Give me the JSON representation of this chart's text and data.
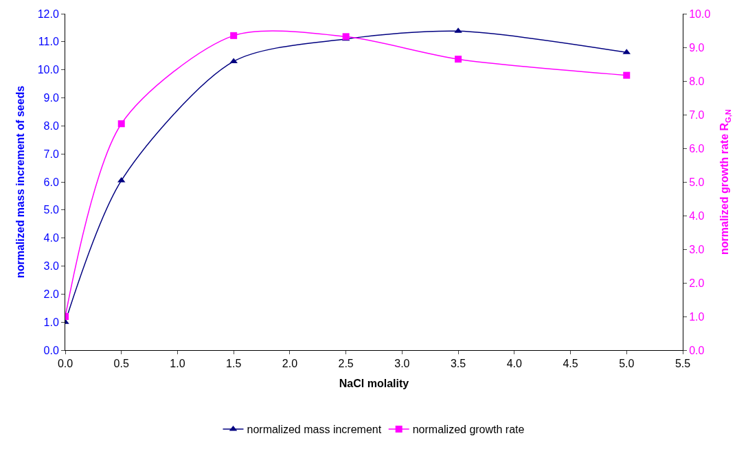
{
  "chart_data": {
    "type": "line",
    "xlabel": "NaCl molality",
    "ylabel": "normalized mass increment of seeds",
    "y2label": "normalized growth rate R$_{G,N}$",
    "x": [
      0,
      0.5,
      1.5,
      2.5,
      3.5,
      5.0
    ],
    "series": [
      {
        "name": "normalized mass increment",
        "color": "#000080",
        "marker": "triangle",
        "values": [
          1.0,
          6.05,
          10.3,
          11.1,
          11.38,
          10.62
        ]
      },
      {
        "name": "normalized growth rate",
        "color": "#ff00ff",
        "marker": "square",
        "axis": "y2",
        "values": [
          1.0,
          6.73,
          9.35,
          9.32,
          8.65,
          8.17
        ]
      }
    ],
    "xlim": [
      0,
      5.5
    ],
    "xticks": [
      {
        "value": 0,
        "label": "0.0"
      },
      {
        "value": 0.5,
        "label": "0.5"
      },
      {
        "value": 1,
        "label": "1.0"
      },
      {
        "value": 1.5,
        "label": "1.5"
      },
      {
        "value": 2,
        "label": "2.0"
      },
      {
        "value": 2.5,
        "label": "2.5"
      },
      {
        "value": 3,
        "label": "3.0"
      },
      {
        "value": 3.5,
        "label": "3.5"
      },
      {
        "value": 4,
        "label": "4.0"
      },
      {
        "value": 4.5,
        "label": "4.5"
      },
      {
        "value": 5,
        "label": "5.0"
      },
      {
        "value": 5.5,
        "label": "5.5"
      }
    ],
    "ylim": [
      0,
      12
    ],
    "yticks": [
      {
        "value": 0,
        "label": "0.0"
      },
      {
        "value": 1,
        "label": "1.0"
      },
      {
        "value": 2,
        "label": "2.0"
      },
      {
        "value": 3,
        "label": "3.0"
      },
      {
        "value": 4,
        "label": "4.0"
      },
      {
        "value": 5,
        "label": "5.0"
      },
      {
        "value": 6,
        "label": "6.0"
      },
      {
        "value": 7,
        "label": "7.0"
      },
      {
        "value": 8,
        "label": "8.0"
      },
      {
        "value": 9,
        "label": "9.0"
      },
      {
        "value": 10,
        "label": "10.0"
      },
      {
        "value": 11,
        "label": "11.0"
      },
      {
        "value": 12,
        "label": "12.0"
      }
    ],
    "y2lim": [
      0,
      10
    ],
    "y2ticks": [
      {
        "value": 0,
        "label": "0.0"
      },
      {
        "value": 1,
        "label": "1.0"
      },
      {
        "value": 2,
        "label": "2.0"
      },
      {
        "value": 3,
        "label": "3.0"
      },
      {
        "value": 4,
        "label": "4.0"
      },
      {
        "value": 5,
        "label": "5.0"
      },
      {
        "value": 6,
        "label": "6.0"
      },
      {
        "value": 7,
        "label": "7.0"
      },
      {
        "value": 8,
        "label": "8.0"
      },
      {
        "value": 9,
        "label": "9.0"
      },
      {
        "value": 10,
        "label": "10.0"
      }
    ],
    "legend": "bottom",
    "line_style": "solid"
  }
}
